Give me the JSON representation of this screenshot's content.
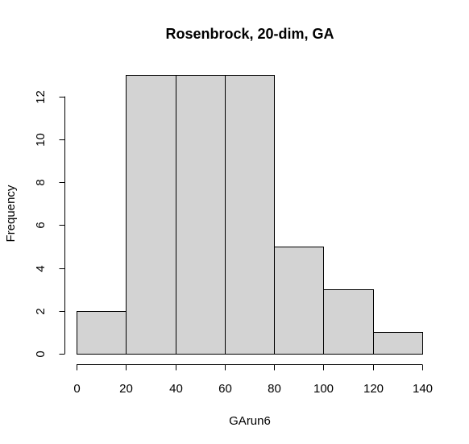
{
  "chart_data": {
    "type": "bar",
    "subtype": "histogram",
    "title": "Rosenbrock, 20-dim, GA",
    "xlabel": "GArun6",
    "ylabel": "Frequency",
    "bins": [
      {
        "start": 0,
        "end": 20,
        "count": 2
      },
      {
        "start": 20,
        "end": 40,
        "count": 13
      },
      {
        "start": 40,
        "end": 60,
        "count": 13
      },
      {
        "start": 60,
        "end": 80,
        "count": 13
      },
      {
        "start": 80,
        "end": 100,
        "count": 5
      },
      {
        "start": 100,
        "end": 120,
        "count": 3
      },
      {
        "start": 120,
        "end": 140,
        "count": 1
      }
    ],
    "xlim": [
      0,
      140
    ],
    "ylim": [
      0,
      13
    ],
    "x_ticks": [
      "0",
      "20",
      "40",
      "60",
      "80",
      "100",
      "120",
      "140"
    ],
    "x_tick_values": [
      0,
      20,
      40,
      60,
      80,
      100,
      120,
      140
    ],
    "y_ticks": [
      "0",
      "2",
      "4",
      "6",
      "8",
      "10",
      "12"
    ],
    "y_tick_values": [
      0,
      2,
      4,
      6,
      8,
      10,
      12
    ],
    "bar_color": "#d3d3d3",
    "edge_color": "#000000",
    "grid": false,
    "legend": "none"
  }
}
